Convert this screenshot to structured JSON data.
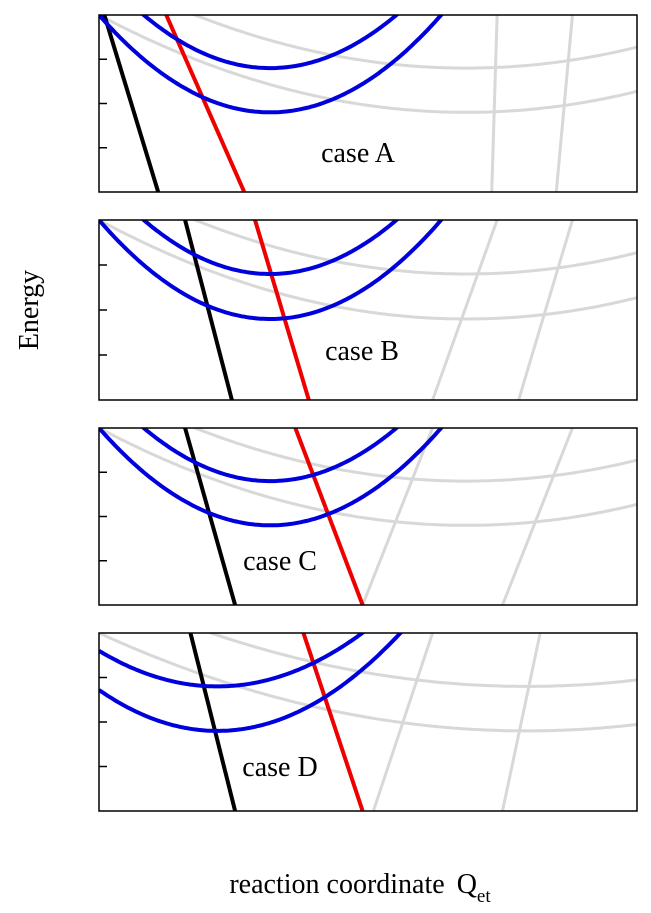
{
  "figure": {
    "ylabel": "Energy",
    "xlabel": "reaction coordinate",
    "xlabel_symbol": "Q",
    "xlabel_subscript": "et"
  },
  "colors": {
    "blue": "#0000dd",
    "red": "#ee0000",
    "black": "#000000",
    "ghost": "#d8d8d8",
    "frame": "#000000"
  },
  "chart_data": [
    {
      "type": "line",
      "panel": "case A",
      "xlim": [
        0,
        1
      ],
      "ylim": [
        0,
        1
      ],
      "yticks": [
        0.25,
        0.5,
        0.75
      ],
      "parabolas": [
        {
          "color": "blue",
          "x0": 0.318,
          "y0": 0.7,
          "y_left_edge": 1.25
        },
        {
          "color": "blue",
          "x0": 0.318,
          "y0": 0.45,
          "y_left_edge": 1.0
        }
      ],
      "ghost_parabolas": [
        {
          "x0": 0.683,
          "y0": 0.7,
          "y_left_edge": 1.25
        },
        {
          "x0": 0.683,
          "y0": 0.45,
          "y_left_edge": 1.0
        }
      ],
      "lines": [
        {
          "color": "black",
          "points": [
            [
              0.01,
              1.0
            ],
            [
              0.11,
              0.0
            ]
          ]
        },
        {
          "color": "red",
          "points": [
            [
              0.125,
              1.0
            ],
            [
              0.27,
              0.0
            ]
          ]
        }
      ],
      "ghost_lines": [
        {
          "points": [
            [
              0.74,
              1.0
            ],
            [
              0.73,
              0.0
            ]
          ]
        },
        {
          "points": [
            [
              0.88,
              1.0
            ],
            [
              0.85,
              0.0
            ]
          ]
        }
      ],
      "annotation": "case A"
    },
    {
      "type": "line",
      "panel": "case B",
      "xlim": [
        0,
        1
      ],
      "ylim": [
        0,
        1
      ],
      "yticks": [
        0.25,
        0.5,
        0.75
      ],
      "parabolas": [
        {
          "color": "blue",
          "x0": 0.318,
          "y0": 0.7,
          "y_left_edge": 1.25
        },
        {
          "color": "blue",
          "x0": 0.318,
          "y0": 0.45,
          "y_left_edge": 1.0
        }
      ],
      "ghost_parabolas": [
        {
          "x0": 0.683,
          "y0": 0.7,
          "y_left_edge": 1.25
        },
        {
          "x0": 0.683,
          "y0": 0.45,
          "y_left_edge": 1.0
        }
      ],
      "lines": [
        {
          "color": "black",
          "points": [
            [
              0.16,
              1.0
            ],
            [
              0.247,
              0.0
            ]
          ]
        },
        {
          "color": "red",
          "points": [
            [
              0.29,
              1.0
            ],
            [
              0.39,
              0.0
            ]
          ]
        }
      ],
      "ghost_lines": [
        {
          "points": [
            [
              0.74,
              1.0
            ],
            [
              0.62,
              0.0
            ]
          ]
        },
        {
          "points": [
            [
              0.88,
              1.0
            ],
            [
              0.78,
              0.0
            ]
          ]
        }
      ],
      "annotation": "case B"
    },
    {
      "type": "line",
      "panel": "case C",
      "xlim": [
        0,
        1
      ],
      "ylim": [
        0,
        1
      ],
      "yticks": [
        0.25,
        0.5,
        0.75
      ],
      "parabolas": [
        {
          "color": "blue",
          "x0": 0.318,
          "y0": 0.7,
          "y_left_edge": 1.25
        },
        {
          "color": "blue",
          "x0": 0.318,
          "y0": 0.45,
          "y_left_edge": 1.0
        }
      ],
      "ghost_parabolas": [
        {
          "x0": 0.683,
          "y0": 0.7,
          "y_left_edge": 1.25
        },
        {
          "x0": 0.683,
          "y0": 0.45,
          "y_left_edge": 1.0
        }
      ],
      "lines": [
        {
          "color": "black",
          "points": [
            [
              0.16,
              1.0
            ],
            [
              0.253,
              0.0
            ]
          ]
        },
        {
          "color": "red",
          "points": [
            [
              0.365,
              1.0
            ],
            [
              0.49,
              0.0
            ]
          ]
        }
      ],
      "ghost_lines": [
        {
          "points": [
            [
              0.62,
              1.0
            ],
            [
              0.49,
              0.0
            ]
          ]
        },
        {
          "points": [
            [
              0.88,
              1.0
            ],
            [
              0.75,
              0.0
            ]
          ]
        }
      ],
      "annotation": "case C"
    },
    {
      "type": "line",
      "panel": "case D",
      "xlim": [
        0,
        1
      ],
      "ylim": [
        0,
        1
      ],
      "yticks": [
        0.25,
        0.5,
        0.75
      ],
      "parabolas": [
        {
          "color": "blue",
          "x0": 0.22,
          "y0": 0.7,
          "y_left_edge": 0.9
        },
        {
          "color": "blue",
          "x0": 0.22,
          "y0": 0.45,
          "y_left_edge": 0.68
        }
      ],
      "ghost_parabolas": [
        {
          "x0": 0.795,
          "y0": 0.7,
          "y_left_edge": 1.25
        },
        {
          "x0": 0.795,
          "y0": 0.45,
          "y_left_edge": 1.0
        }
      ],
      "lines": [
        {
          "color": "black",
          "points": [
            [
              0.17,
              1.0
            ],
            [
              0.253,
              0.0
            ]
          ]
        },
        {
          "color": "red",
          "points": [
            [
              0.38,
              1.0
            ],
            [
              0.49,
              0.0
            ]
          ]
        }
      ],
      "ghost_lines": [
        {
          "points": [
            [
              0.62,
              1.0
            ],
            [
              0.51,
              0.0
            ]
          ]
        },
        {
          "points": [
            [
              0.82,
              1.0
            ],
            [
              0.75,
              0.0
            ]
          ]
        }
      ],
      "annotation": "case D"
    }
  ]
}
